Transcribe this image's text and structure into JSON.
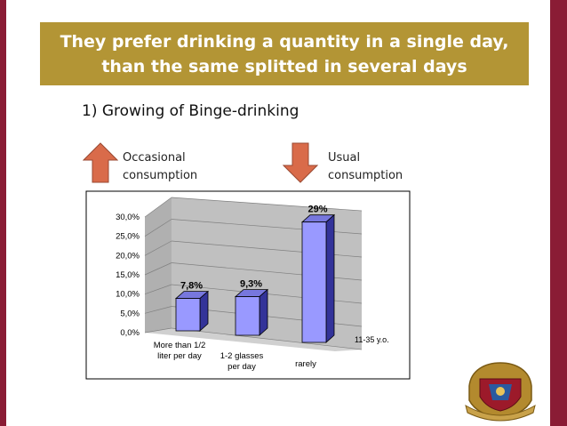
{
  "slide": {
    "title": "They prefer drinking a quantity in a single day, than the same splitted in several days",
    "subtitle": "1) Growing of Binge-drinking",
    "left_label": "Occasional\nconsumption",
    "right_label": "Usual\nconsumption",
    "colors": {
      "band": "#8a1c35",
      "title_bg": "#b39535",
      "arrow": "#d96b4a"
    }
  },
  "chart_data": {
    "type": "bar",
    "categories": [
      "More than 1/2 liter per day",
      "1-2  glasses per day",
      "rarely"
    ],
    "series": [
      {
        "name": "11-35 y.o.",
        "values": [
          7.8,
          9.3,
          29
        ]
      }
    ],
    "value_labels": [
      "7,8%",
      "9,3%",
      "29%"
    ],
    "y_ticks": [
      "0,0%",
      "5,0%",
      "10,0%",
      "15,0%",
      "20,0%",
      "25,0%",
      "30,0%"
    ],
    "ylim": [
      0,
      30
    ],
    "grid": true,
    "bar_color": "#9999ff",
    "title": "",
    "xlabel": "",
    "ylabel": ""
  }
}
